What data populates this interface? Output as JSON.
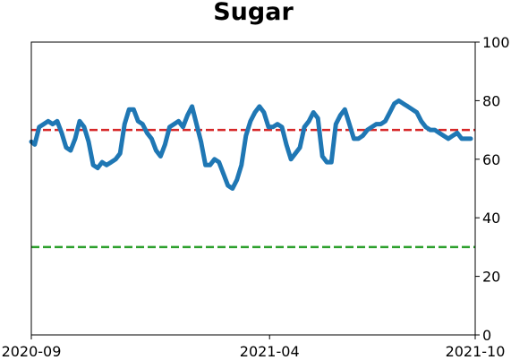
{
  "chart_data": {
    "type": "line",
    "title": "Sugar",
    "xlabel": "",
    "ylabel": "",
    "x_ticks": [
      "2020-09",
      "2021-04",
      "2021-10"
    ],
    "y_ticks": [
      0,
      20,
      40,
      60,
      80,
      100
    ],
    "ylim": [
      0,
      100
    ],
    "y_axis_side": "right",
    "grid": false,
    "series": [
      {
        "color": "#1f77b4",
        "x": [
          "2020-09-01",
          "2020-09-04",
          "2020-09-08",
          "2020-09-12",
          "2020-09-16",
          "2020-09-20",
          "2020-09-24",
          "2020-09-28",
          "2020-10-02",
          "2020-10-06",
          "2020-10-10",
          "2020-10-14",
          "2020-10-18",
          "2020-10-22",
          "2020-10-26",
          "2020-10-30",
          "2020-11-03",
          "2020-11-07",
          "2020-11-11",
          "2020-11-15",
          "2020-11-19",
          "2020-11-23",
          "2020-11-27",
          "2020-12-01",
          "2020-12-05",
          "2020-12-09",
          "2020-12-13",
          "2020-12-17",
          "2020-12-21",
          "2020-12-25",
          "2020-12-29",
          "2021-01-02",
          "2021-01-06",
          "2021-01-10",
          "2021-01-14",
          "2021-01-18",
          "2021-01-22",
          "2021-01-26",
          "2021-01-30",
          "2021-02-03",
          "2021-02-07",
          "2021-02-11",
          "2021-02-15",
          "2021-02-19",
          "2021-02-23",
          "2021-02-27",
          "2021-03-03",
          "2021-03-07",
          "2021-03-11",
          "2021-03-15",
          "2021-03-19",
          "2021-03-23",
          "2021-03-27",
          "2021-03-31",
          "2021-04-04",
          "2021-04-08",
          "2021-04-12",
          "2021-04-16",
          "2021-04-20",
          "2021-04-24",
          "2021-04-28",
          "2021-05-02",
          "2021-05-06",
          "2021-05-10",
          "2021-05-14",
          "2021-05-18",
          "2021-05-22",
          "2021-05-26",
          "2021-05-30",
          "2021-06-03",
          "2021-06-07",
          "2021-06-11",
          "2021-06-15",
          "2021-06-19",
          "2021-06-23",
          "2021-06-27",
          "2021-07-01",
          "2021-07-05",
          "2021-07-09",
          "2021-07-13",
          "2021-07-17",
          "2021-07-21",
          "2021-07-25",
          "2021-07-29",
          "2021-08-02",
          "2021-08-06",
          "2021-08-10",
          "2021-08-14",
          "2021-08-18",
          "2021-08-22",
          "2021-08-26",
          "2021-08-30",
          "2021-09-03",
          "2021-09-07",
          "2021-09-11",
          "2021-09-15",
          "2021-09-19",
          "2021-09-23",
          "2021-09-27"
        ],
        "values": [
          66,
          65,
          71,
          72,
          73,
          72,
          73,
          69,
          64,
          63,
          67,
          73,
          71,
          66,
          58,
          57,
          59,
          58,
          59,
          60,
          62,
          72,
          77,
          77,
          73,
          72,
          69,
          67,
          63,
          61,
          65,
          71,
          72,
          73,
          71,
          75,
          78,
          72,
          66,
          58,
          58,
          60,
          59,
          55,
          51,
          50,
          53,
          58,
          68,
          73,
          76,
          78,
          76,
          71,
          71,
          72,
          71,
          65,
          60,
          62,
          64,
          71,
          73,
          76,
          74,
          61,
          59,
          59,
          72,
          75,
          77,
          72,
          67,
          67,
          68,
          70,
          71,
          72,
          72,
          73,
          76,
          79,
          80,
          79,
          78,
          77,
          76,
          73,
          71,
          70,
          70,
          69,
          68,
          67,
          68,
          69,
          67,
          67,
          67
        ]
      }
    ],
    "reference_lines": [
      {
        "y": 70,
        "color": "#d62728",
        "style": "dashed"
      },
      {
        "y": 30,
        "color": "#2ca02c",
        "style": "dashed"
      }
    ]
  }
}
